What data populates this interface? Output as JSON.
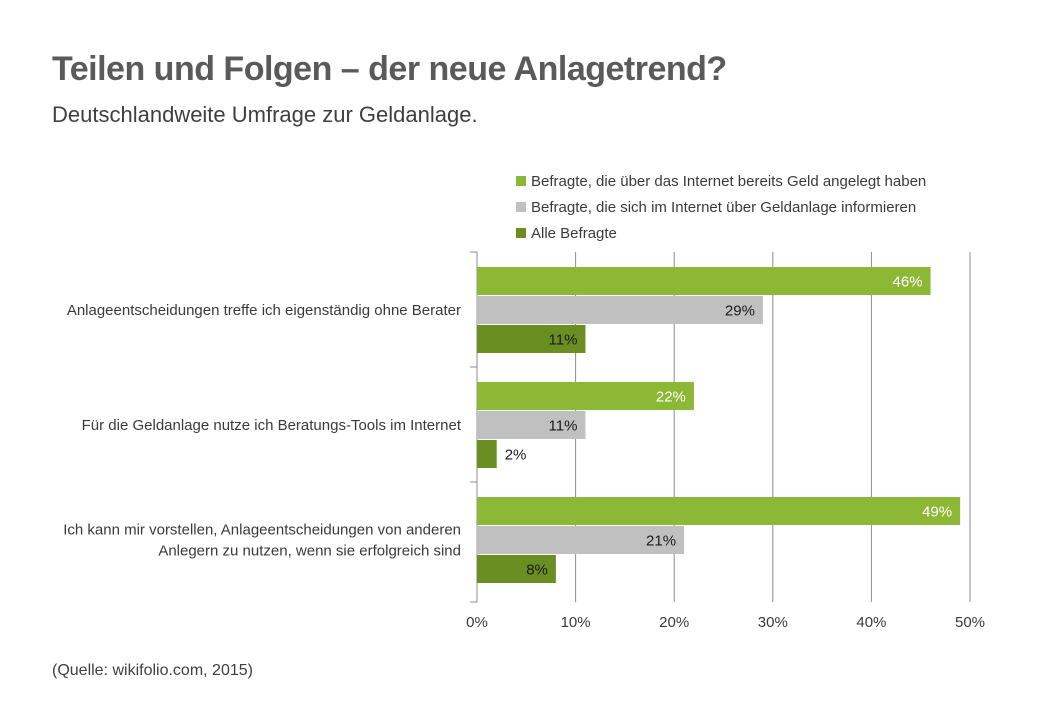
{
  "header": {
    "title": "Teilen und Folgen – der neue Anlagetrend?",
    "subtitle": "Deutschlandweite Umfrage zur Geldanlage."
  },
  "footer": {
    "source": "(Quelle: wikifolio.com, 2015)"
  },
  "chart_data": {
    "type": "bar",
    "orientation": "horizontal",
    "categories": [
      [
        "Anlageentscheidungen treffe ich eigenständig ohne Berater"
      ],
      [
        "Für die Geldanlage nutze ich Beratungs-Tools im Internet"
      ],
      [
        "Ich kann mir vorstellen, Anlageentscheidungen von anderen",
        "Anlegern zu nutzen, wenn sie erfolgreich sind"
      ]
    ],
    "series": [
      {
        "name": "Befragte, die über das Internet bereits Geld angelegt haben",
        "values": [
          46,
          22,
          49
        ],
        "color": "#8db836",
        "label_color": "#ffffff"
      },
      {
        "name": "Befragte, die sich im Internet über Geldanlage informieren",
        "values": [
          29,
          11,
          21
        ],
        "color": "#c0c0c0",
        "label_color": "#1a1a1a"
      },
      {
        "name": "Alle Befragte",
        "values": [
          11,
          2,
          8
        ],
        "color": "#6b8e23",
        "label_color": "#1a1a1a"
      }
    ],
    "xlim": [
      0,
      50
    ],
    "xticks": [
      "0%",
      "10%",
      "20%",
      "30%",
      "40%",
      "50%"
    ],
    "value_suffix": "%",
    "grid": true,
    "legend_position": "top"
  }
}
